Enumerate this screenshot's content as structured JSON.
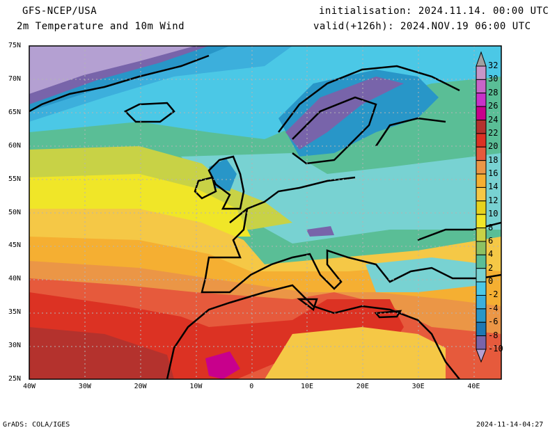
{
  "header": {
    "model": "GFS-NCEP/USA",
    "product": "2m Temperature and 10m Wind",
    "initialisation": "initialisation: 2024.11.14. 00:00 UTC",
    "valid": "valid(+126h): 2024.NOV.19 06:00 UTC"
  },
  "axes": {
    "lat_labels": [
      "75N",
      "70N",
      "65N",
      "60N",
      "55N",
      "50N",
      "45N",
      "40N",
      "35N",
      "30N",
      "25N"
    ],
    "lon_labels": [
      "40W",
      "30W",
      "20W",
      "10W",
      "0",
      "10E",
      "20E",
      "30E",
      "40E"
    ]
  },
  "colorbar": {
    "labels": [
      "32",
      "30",
      "28",
      "26",
      "24",
      "22",
      "20",
      "18",
      "16",
      "14",
      "12",
      "10",
      "8",
      "6",
      "4",
      "2",
      "0",
      "-2",
      "-4",
      "-6",
      "-8",
      "-10"
    ],
    "above_color": "#a0a0a0",
    "below_color": "#b4a0d2",
    "colors": [
      "#c896c8",
      "#c864c8",
      "#c832c8",
      "#c8008c",
      "#b4322d",
      "#dc3223",
      "#e65a3c",
      "#eb9646",
      "#f5af32",
      "#f5c846",
      "#e6d21e",
      "#f0e628",
      "#c8d246",
      "#8cc164",
      "#5abe96",
      "#78d2d2",
      "#4bc8e6",
      "#3cafdc",
      "#2896c8",
      "#1e78b4",
      "#7864aa"
    ]
  },
  "footer": {
    "left": "GrADS: COLA/IGES",
    "right": "2024-11-14-04:27"
  }
}
